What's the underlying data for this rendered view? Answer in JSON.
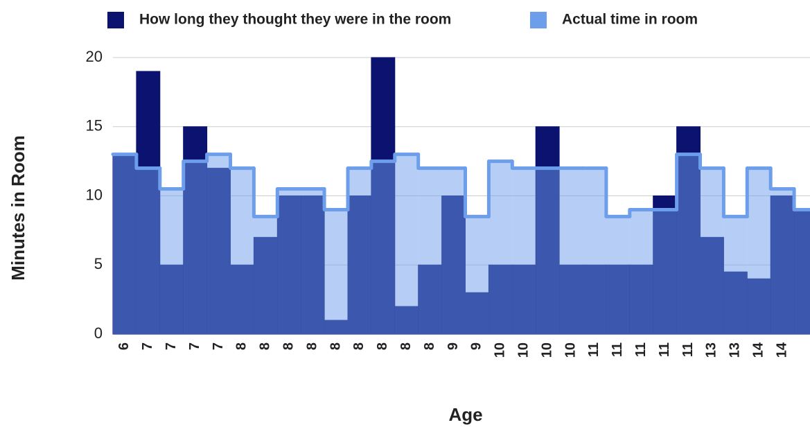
{
  "chart_data": {
    "type": "stepped-area",
    "x_label": "Age",
    "y_label": "Minutes in Room",
    "categories": [
      "6",
      "7",
      "7",
      "7",
      "7",
      "8",
      "8",
      "8",
      "8",
      "8",
      "8",
      "8",
      "8",
      "8",
      "9",
      "9",
      "10",
      "10",
      "10",
      "10",
      "11",
      "11",
      "11",
      "11",
      "11",
      "13",
      "13",
      "14",
      "14",
      null
    ],
    "series": [
      {
        "name": "How long they thought they were in the room",
        "color": "#0b1270",
        "values": [
          13,
          19,
          5,
          15,
          12,
          5,
          7,
          10,
          10,
          1,
          10,
          20,
          2,
          5,
          10,
          3,
          5,
          5,
          15,
          5,
          5,
          5,
          5,
          10,
          15,
          7,
          4.5,
          4,
          10,
          9
        ]
      },
      {
        "name": "Actual time in room",
        "color": "#6d9eeb",
        "values": [
          13,
          12,
          10.5,
          12.5,
          13,
          12,
          8.5,
          10.5,
          10.5,
          9,
          12,
          12.5,
          13,
          12,
          12,
          8.5,
          12.5,
          12,
          12,
          12,
          12,
          8.5,
          9,
          9,
          13,
          12,
          8.5,
          12,
          10.5,
          9
        ]
      }
    ],
    "ylim": [
      0,
      20
    ],
    "yticks": [
      0,
      5,
      10,
      15,
      20
    ],
    "grid": true,
    "legend": "top"
  }
}
